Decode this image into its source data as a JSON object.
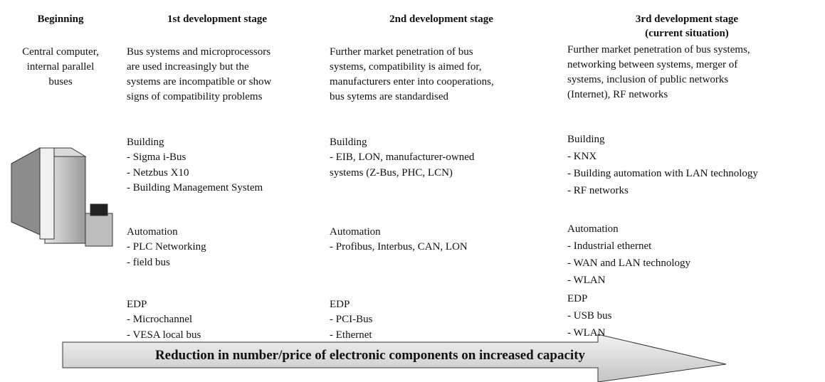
{
  "columns": [
    {
      "header": [
        "Beginning"
      ],
      "description": [
        "Central computer,",
        "internal parallel",
        "buses"
      ],
      "groups": []
    },
    {
      "header": [
        "1st development stage"
      ],
      "description": [
        "Bus systems and microprocessors",
        "are used increasingly but the",
        "systems are incompatible or show",
        "signs of compatibility problems"
      ],
      "groups": [
        {
          "title": "Building",
          "items": [
            "- Sigma i-Bus",
            "- Netzbus X10",
            "- Building Management System"
          ]
        },
        {
          "title": "Automation",
          "items": [
            "- PLC Networking",
            "- field bus"
          ]
        },
        {
          "title": "EDP",
          "items": [
            "- Microchannel",
            "- VESA local bus"
          ]
        }
      ]
    },
    {
      "header": [
        "2nd development stage"
      ],
      "description": [
        "Further market penetration of bus",
        "systems, compatibility is aimed for,",
        "manufacturers enter into cooperations,",
        "bus sytems are standardised"
      ],
      "groups": [
        {
          "title": "Building",
          "items": [
            "- EIB, LON, manufacturer-owned",
            "systems (Z-Bus, PHC, LCN)"
          ]
        },
        {
          "title": "Automation",
          "items": [
            "- Profibus, Interbus, CAN, LON"
          ]
        },
        {
          "title": "EDP",
          "items": [
            "- PCI-Bus",
            "- Ethernet"
          ]
        }
      ]
    },
    {
      "header": [
        "3rd development stage",
        "(current situation)"
      ],
      "description": [
        "Further market penetration of bus systems,",
        "networking between systems, merger of",
        "systems, inclusion of public networks",
        "(Internet), RF networks"
      ],
      "groups": [
        {
          "title": "Building",
          "items": [
            "- KNX",
            "- Building automation with LAN technology",
            "- RF networks"
          ]
        },
        {
          "title": "Automation",
          "items": [
            "- Industrial ethernet",
            "- WAN and LAN technology",
            "- WLAN"
          ]
        },
        {
          "title": "EDP",
          "items": [
            "- USB bus",
            "- WLAN"
          ]
        }
      ]
    }
  ],
  "arrow_label": "Reduction in number/price of electronic components on increased capacity"
}
